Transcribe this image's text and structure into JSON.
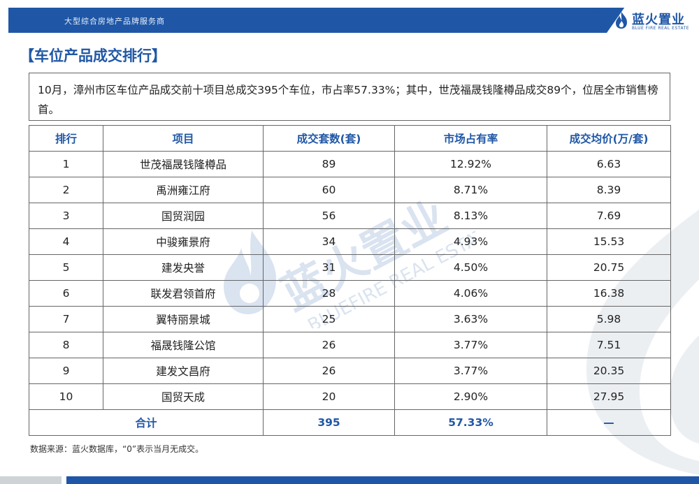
{
  "header": {
    "tagline": "大型综合房地产品牌服务商",
    "logo_cn": "蓝火置业",
    "logo_en": "BLUE FIRE REAL ESTATE"
  },
  "title": "【车位产品成交排行】",
  "summary": "10月，漳州市区车位产品成交前十项目总成交395个车位，市占率57.33%；其中，世茂福晟钱隆樽品成交89个，位居全市销售榜首。",
  "table": {
    "headers": [
      "排行",
      "项目",
      "成交套数(套)",
      "市场占有率",
      "成交均价(万/套)"
    ],
    "rows": [
      [
        "1",
        "世茂福晟钱隆樽品",
        "89",
        "12.92%",
        "6.63"
      ],
      [
        "2",
        "禹洲雍江府",
        "60",
        "8.71%",
        "8.39"
      ],
      [
        "3",
        "国贸润园",
        "56",
        "8.13%",
        "7.69"
      ],
      [
        "4",
        "中骏雍景府",
        "34",
        "4.93%",
        "15.53"
      ],
      [
        "5",
        "建发央誉",
        "31",
        "4.50%",
        "20.75"
      ],
      [
        "6",
        "联发君领首府",
        "28",
        "4.06%",
        "16.38"
      ],
      [
        "7",
        "翼特丽景城",
        "25",
        "3.63%",
        "5.98"
      ],
      [
        "8",
        "福晟钱隆公馆",
        "26",
        "3.77%",
        "7.51"
      ],
      [
        "9",
        "建发文昌府",
        "26",
        "3.77%",
        "20.35"
      ],
      [
        "10",
        "国贸天成",
        "20",
        "2.90%",
        "27.95"
      ]
    ],
    "total": {
      "label": "合计",
      "units": "395",
      "share": "57.33%",
      "price": "—"
    }
  },
  "watermark": {
    "cn": "蓝火置业",
    "en": "BLUEFIRE REAL ESTATE"
  },
  "source_note": "数据来源：蓝火数据库，“0”表示当月无成交。",
  "colors": {
    "brand": "#1f57a6",
    "border": "#666666"
  }
}
